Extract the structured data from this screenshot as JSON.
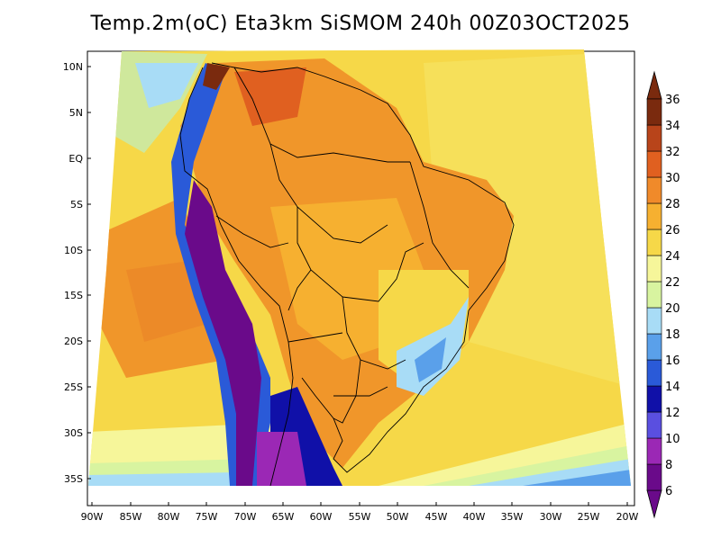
{
  "title": "Temp.2m(oC) Eta3km SiSMOM 240h 00Z03OCT2025",
  "map": {
    "lat_ticks": [
      "10N",
      "5N",
      "EQ",
      "5S",
      "10S",
      "15S",
      "20S",
      "25S",
      "30S",
      "35S"
    ],
    "lon_ticks": [
      "90W",
      "85W",
      "80W",
      "75W",
      "70W",
      "65W",
      "60W",
      "55W",
      "50W",
      "45W",
      "40W",
      "35W",
      "30W",
      "25W",
      "20W"
    ],
    "variable": "2 m temperature",
    "units": "oC"
  },
  "colorbar": {
    "levels": [
      6,
      8,
      10,
      12,
      14,
      16,
      18,
      20,
      22,
      24,
      26,
      28,
      30,
      32,
      34,
      36
    ],
    "colors": [
      "#6a0a8a",
      "#9b28b5",
      "#5a4fe0",
      "#1010a8",
      "#2a5ad8",
      "#5aa0ea",
      "#a8dcf6",
      "#d8f4a0",
      "#f6f69a",
      "#f6d848",
      "#f6b030",
      "#f08a2a",
      "#e06020",
      "#b8441a",
      "#7a2a0e"
    ],
    "labels": [
      "6",
      "8",
      "10",
      "12",
      "14",
      "16",
      "18",
      "20",
      "22",
      "24",
      "26",
      "28",
      "30",
      "32",
      "34",
      "36"
    ]
  }
}
